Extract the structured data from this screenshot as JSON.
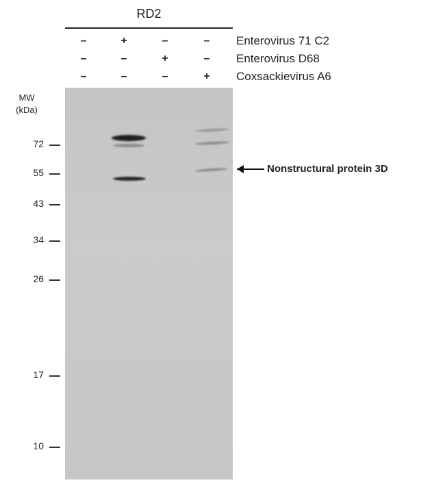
{
  "cell_line": "RD2",
  "conditions": [
    {
      "label": "Enterovirus 71 C2",
      "signs": [
        "–",
        "+",
        "–",
        "–"
      ]
    },
    {
      "label": "Enterovirus D68",
      "signs": [
        "–",
        "–",
        "+",
        "–"
      ]
    },
    {
      "label": "Coxsackievirus A6",
      "signs": [
        "–",
        "–",
        "–",
        "+"
      ]
    }
  ],
  "mw_header": [
    "MW",
    "(kDa)"
  ],
  "mw_markers": [
    "72",
    "55",
    "43",
    "34",
    "26",
    "17",
    "10"
  ],
  "target_label": "Nonstructural protein 3D",
  "colors": {
    "membrane": "#c8c8c8",
    "band": "#1a1a1a"
  }
}
